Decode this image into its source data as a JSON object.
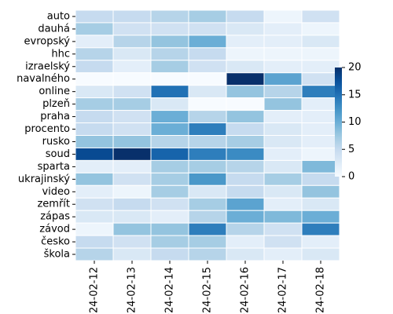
{
  "chart_data": {
    "type": "heatmap",
    "title": "",
    "xlabel": "",
    "ylabel": "",
    "x": [
      "2024-02-12",
      "2024-02-13",
      "2024-02-14",
      "2024-02-15",
      "2024-02-16",
      "2024-02-17",
      "2024-02-18"
    ],
    "y": [
      "auto",
      "dauhá",
      "evropský",
      "hhc",
      "izraelský",
      "navalného",
      "online",
      "plzeň",
      "praha",
      "procento",
      "rusko",
      "soud",
      "sparta",
      "ukrajinský",
      "video",
      "zemřít",
      "zápas",
      "závod",
      "česko",
      "škola"
    ],
    "values": [
      [
        5,
        5,
        6,
        7,
        5,
        1,
        4
      ],
      [
        7,
        4,
        4,
        4,
        3,
        2,
        1
      ],
      [
        2,
        6,
        8,
        10,
        2,
        2,
        3
      ],
      [
        6,
        3,
        6,
        5,
        1,
        1,
        1
      ],
      [
        5,
        2,
        7,
        4,
        3,
        2,
        2
      ],
      [
        0,
        0,
        0,
        0,
        20,
        11,
        4
      ],
      [
        3,
        4,
        15,
        3,
        8,
        6,
        14
      ],
      [
        7,
        7,
        3,
        0,
        0,
        8,
        2
      ],
      [
        5,
        4,
        10,
        6,
        8,
        2,
        2
      ],
      [
        5,
        4,
        10,
        14,
        5,
        3,
        2
      ],
      [
        8,
        8,
        6,
        6,
        7,
        3,
        2
      ],
      [
        18,
        20,
        16,
        14,
        13,
        2,
        1
      ],
      [
        2,
        2,
        7,
        7,
        6,
        3,
        9
      ],
      [
        8,
        4,
        7,
        12,
        5,
        7,
        5
      ],
      [
        2,
        1,
        7,
        3,
        5,
        3,
        8
      ],
      [
        4,
        5,
        4,
        7,
        11,
        2,
        3
      ],
      [
        3,
        3,
        2,
        6,
        10,
        9,
        10
      ],
      [
        1,
        8,
        8,
        14,
        6,
        4,
        14
      ],
      [
        5,
        4,
        7,
        7,
        2,
        4,
        2
      ],
      [
        6,
        3,
        5,
        6,
        3,
        2,
        3
      ]
    ],
    "colorbar": {
      "min": 0,
      "max": 20,
      "ticks": [
        0,
        5,
        10,
        15,
        20
      ]
    },
    "colormap": "Blues",
    "cell_border_color": "#ffffff",
    "text_color": "#000000"
  }
}
